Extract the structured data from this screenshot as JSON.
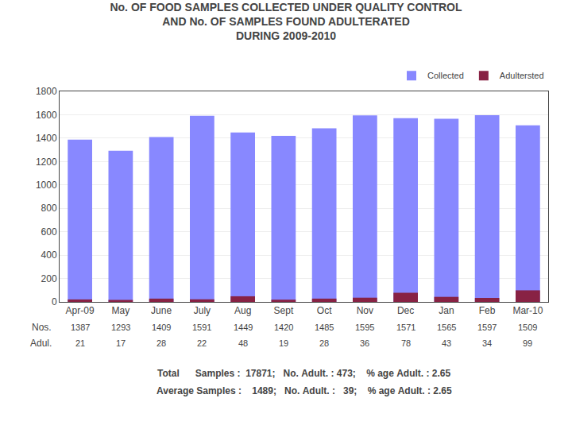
{
  "chart_data": {
    "type": "bar",
    "title": "No. OF FOOD SAMPLES COLLECTED UNDER QUALITY CONTROL\nAND No. OF SAMPLES FOUND ADULTERATED\nDURING 2009-2010",
    "categories": [
      "Apr-09",
      "May",
      "June",
      "July",
      "Aug",
      "Sept",
      "Oct",
      "Nov",
      "Dec",
      "Jan",
      "Feb",
      "Mar-10"
    ],
    "series": [
      {
        "name": "Collected",
        "color": "#8888ff",
        "table_label": "Nos.",
        "values": [
          1387,
          1293,
          1409,
          1591,
          1449,
          1420,
          1485,
          1595,
          1571,
          1565,
          1597,
          1509
        ]
      },
      {
        "name": "Adultersted",
        "color": "#882244",
        "table_label": "Adul.",
        "values": [
          21,
          17,
          28,
          22,
          48,
          19,
          28,
          36,
          78,
          43,
          34,
          99
        ]
      }
    ],
    "stacked": false,
    "ylim": [
      0,
      1800
    ],
    "yticks": [
      0,
      200,
      400,
      600,
      800,
      1000,
      1200,
      1400,
      1600,
      1800
    ],
    "grid": true,
    "legend": "upper right",
    "annotations": [
      "Total      Samples :  17871;   No. Adult. : 473;    % age Adult. : 2.65",
      "Average Samples :    1489;   No. Adult. :   39;    % age Adult. : 2.65"
    ]
  }
}
